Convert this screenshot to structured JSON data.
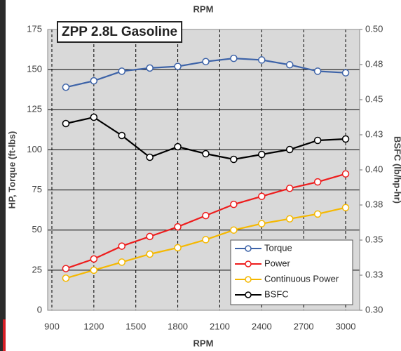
{
  "chart_data": {
    "type": "line",
    "title": "ZPP 2.8L Gasoline",
    "x_label": "RPM",
    "x_label_top": "RPM",
    "y_label": "HP, Torque (ft-lbs)",
    "y2_label": "BSFC (lb/hp-hr)",
    "x": [
      1000,
      1200,
      1400,
      1600,
      1800,
      2000,
      2200,
      2400,
      2600,
      2800,
      3000
    ],
    "xlim": [
      870,
      3100
    ],
    "xticks": [
      900,
      1200,
      1500,
      1800,
      2100,
      2400,
      2700,
      3000
    ],
    "ylim": [
      0,
      175
    ],
    "yticks": [
      0,
      25,
      50,
      75,
      100,
      125,
      150,
      175
    ],
    "y2lim": [
      0.3,
      0.5
    ],
    "y2ticks": [
      {
        "value": 0.3,
        "label": "0.30"
      },
      {
        "value": 0.325,
        "label": "0.33"
      },
      {
        "value": 0.35,
        "label": "0.35"
      },
      {
        "value": 0.375,
        "label": "0.38"
      },
      {
        "value": 0.4,
        "label": "0.40"
      },
      {
        "value": 0.425,
        "label": "0.43"
      },
      {
        "value": 0.45,
        "label": "0.45"
      },
      {
        "value": 0.475,
        "label": "0.48"
      },
      {
        "value": 0.5,
        "label": "0.50"
      }
    ],
    "grid": true,
    "legend": "lower right",
    "series": [
      {
        "name": "Torque",
        "color": "#3d63a8",
        "values": [
          139,
          143,
          149,
          151,
          152,
          155,
          157,
          156,
          153,
          149,
          148
        ]
      },
      {
        "name": "Power",
        "color": "#ee1c1c",
        "values": [
          26,
          32,
          40,
          46,
          52,
          59,
          66,
          71,
          76,
          80,
          85
        ]
      },
      {
        "name": "Continuous Power",
        "color": "#f5b800",
        "values": [
          20,
          25,
          30,
          35,
          39,
          44,
          50,
          54,
          57,
          60,
          64
        ]
      },
      {
        "name": "BSFC",
        "color": "#000000",
        "axis": "y2",
        "values": [
          0.433,
          0.4375,
          0.4245,
          0.409,
          0.4165,
          0.4115,
          0.4075,
          0.411,
          0.4145,
          0.421,
          0.422
        ]
      }
    ]
  }
}
